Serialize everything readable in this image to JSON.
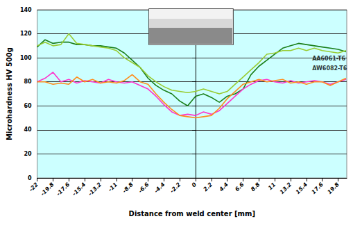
{
  "chart_data": {
    "type": "line",
    "x_label": "Distance from weld center [mm]",
    "y_label": "Microhardness HV 500g",
    "x": [
      -22,
      -20.9,
      -19.8,
      -18.7,
      -17.6,
      -16.5,
      -15.4,
      -14.3,
      -13.2,
      -12.1,
      -11,
      -9.9,
      -8.8,
      -7.7,
      -6.6,
      -5.5,
      -4.4,
      -3.3,
      -2.2,
      -1.1,
      0,
      1.1,
      2.2,
      3.3,
      4.4,
      5.5,
      6.6,
      7.7,
      8.8,
      9.9,
      11,
      12.1,
      13.2,
      14.3,
      15.4,
      16.5,
      17.6,
      18.7,
      19.8,
      20.9
    ],
    "series": [
      {
        "color": "#1a7f1a",
        "line_style": "solid",
        "values": [
          109,
          115,
          112,
          113,
          113,
          111,
          111,
          110,
          110,
          109,
          108,
          104,
          98,
          92,
          83,
          77,
          73,
          70,
          64,
          60,
          68,
          70,
          67,
          63,
          68,
          70,
          74,
          86,
          93,
          98,
          103,
          108,
          110,
          112,
          111,
          110,
          109,
          108,
          107,
          105
        ]
      },
      {
        "color": "#99cc33",
        "line_style": "solid",
        "values": [
          110,
          113,
          110,
          111,
          120,
          112,
          111,
          110,
          109,
          108,
          106,
          100,
          96,
          92,
          85,
          80,
          76,
          73,
          72,
          71,
          72,
          74,
          72,
          70,
          72,
          78,
          84,
          90,
          96,
          103,
          104,
          106,
          106,
          108,
          106,
          108,
          106,
          105,
          104,
          106
        ]
      },
      {
        "color": "#ff33cc",
        "line_style": "solid",
        "values": [
          80,
          83,
          88,
          80,
          82,
          79,
          81,
          80,
          79,
          82,
          80,
          79,
          80,
          77,
          74,
          68,
          61,
          55,
          52,
          53,
          52,
          55,
          53,
          56,
          62,
          68,
          74,
          78,
          81,
          82,
          80,
          79,
          81,
          79,
          80,
          81,
          80,
          78,
          80,
          82
        ]
      },
      {
        "color": "#ff8c1a",
        "line_style": "solid",
        "values": [
          80,
          80,
          78,
          79,
          78,
          84,
          80,
          82,
          79,
          80,
          79,
          81,
          86,
          80,
          78,
          70,
          63,
          57,
          52,
          51,
          50,
          51,
          52,
          58,
          66,
          72,
          78,
          80,
          82,
          80,
          81,
          82,
          79,
          80,
          78,
          80,
          80,
          77,
          80,
          83
        ]
      }
    ],
    "annotations": [
      {
        "text": "AA6061-T6",
        "x": 16.2,
        "y": 99
      },
      {
        "text": "AW6082-T6",
        "x": 16.2,
        "y": 91
      }
    ],
    "xlim": [
      -22,
      21
    ],
    "xticks": [
      -22,
      -19.8,
      -17.6,
      -15.4,
      -13.2,
      -11,
      -8.8,
      -6.6,
      -4.4,
      -2.2,
      0,
      2.2,
      4.4,
      6.6,
      8.8,
      11,
      13.2,
      15.4,
      17.6,
      19.8
    ],
    "ylim": [
      0,
      140
    ],
    "yticks": [
      0,
      20,
      40,
      60,
      80,
      100,
      120,
      140
    ],
    "grid": true
  }
}
